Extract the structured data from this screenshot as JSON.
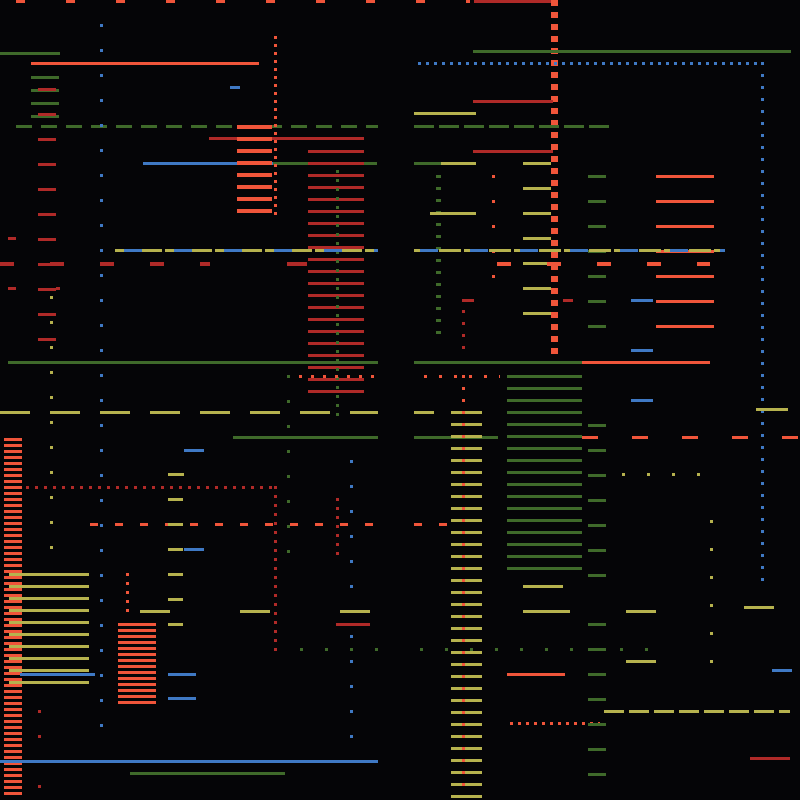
{
  "palette": {
    "background": "#050507",
    "orange": "#f0553a",
    "dark_red": "#b02a28",
    "olive_yellow": "#b6b24e",
    "olive_green": "#3f6a2a",
    "blue": "#3f79c4",
    "pale_orange": "#e8a33c"
  },
  "elements": {
    "canvas_name": "",
    "caption": ""
  }
}
